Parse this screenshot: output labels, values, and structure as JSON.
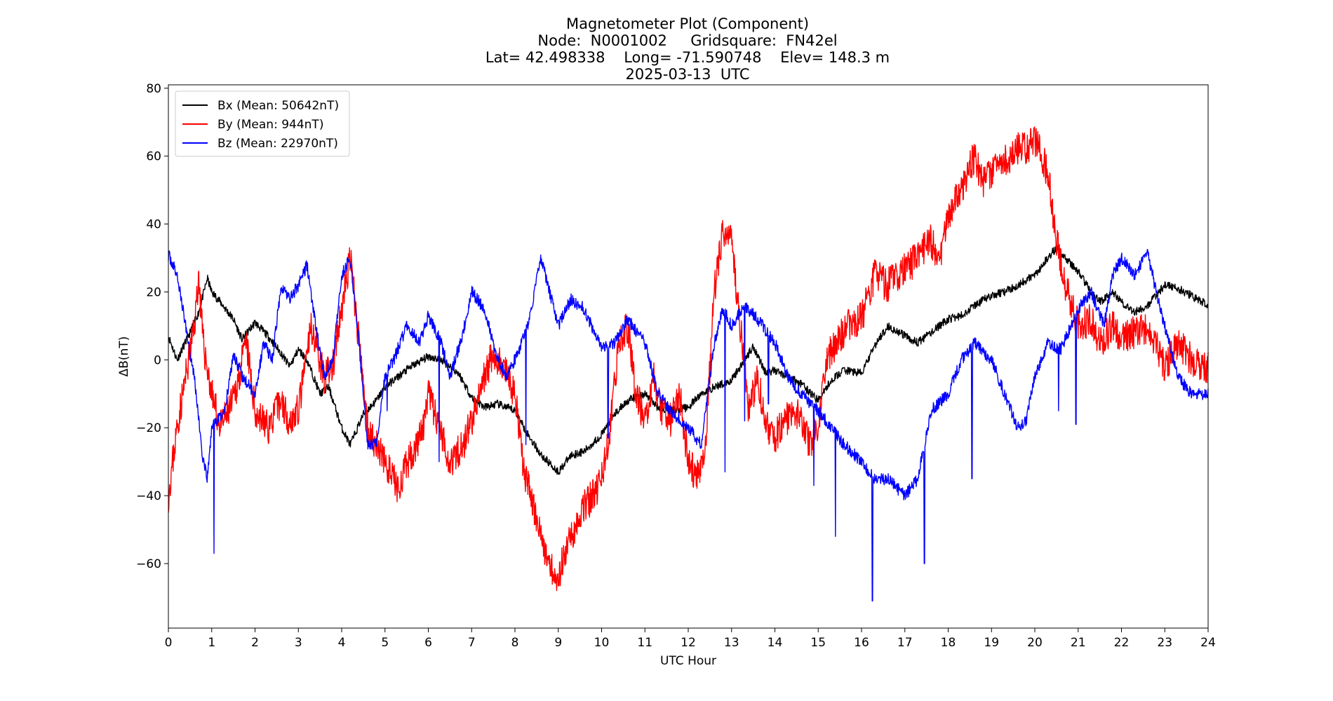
{
  "chart_data": {
    "type": "line",
    "title": "Magnetometer Plot (Component)",
    "subtitle_lines": [
      "Node:  N0001002     Gridsquare:  FN42el",
      "Lat= 42.498338    Long= -71.590748    Elev= 148.3 m",
      "2025-03-13  UTC"
    ],
    "xlabel": "UTC Hour",
    "ylabel": "ΔB(nT)",
    "xlim": [
      0,
      24
    ],
    "ylim": [
      -79,
      81
    ],
    "xticks": [
      0,
      1,
      2,
      3,
      4,
      5,
      6,
      7,
      8,
      9,
      10,
      11,
      12,
      13,
      14,
      15,
      16,
      17,
      18,
      19,
      20,
      21,
      22,
      23,
      24
    ],
    "yticks": [
      -60,
      -40,
      -20,
      0,
      20,
      40,
      60,
      80
    ],
    "ytick_labels": [
      "−60",
      "−40",
      "−20",
      "0",
      "20",
      "40",
      "60",
      "80"
    ],
    "legend_position": "upper-left",
    "series": [
      {
        "name": "Bx (Mean: 50642nT)",
        "color": "#000000",
        "noise": 1.2,
        "seed": 11,
        "points": [
          [
            0,
            7
          ],
          [
            0.2,
            0
          ],
          [
            0.5,
            8
          ],
          [
            0.7,
            14
          ],
          [
            0.9,
            24
          ],
          [
            1,
            20
          ],
          [
            1.2,
            17
          ],
          [
            1.5,
            12
          ],
          [
            1.7,
            6
          ],
          [
            2,
            11
          ],
          [
            2.3,
            7
          ],
          [
            2.6,
            2
          ],
          [
            2.8,
            -2
          ],
          [
            3,
            3
          ],
          [
            3.2,
            0
          ],
          [
            3.5,
            -10
          ],
          [
            3.7,
            -8
          ],
          [
            4,
            -20
          ],
          [
            4.2,
            -25
          ],
          [
            4.5,
            -16
          ],
          [
            4.8,
            -12
          ],
          [
            5,
            -8
          ],
          [
            5.3,
            -5
          ],
          [
            5.6,
            -2
          ],
          [
            6,
            1
          ],
          [
            6.3,
            0
          ],
          [
            6.7,
            -4
          ],
          [
            7,
            -11
          ],
          [
            7.3,
            -14
          ],
          [
            7.6,
            -13
          ],
          [
            8,
            -15
          ],
          [
            8.3,
            -22
          ],
          [
            8.6,
            -28
          ],
          [
            9,
            -33
          ],
          [
            9.3,
            -28
          ],
          [
            9.6,
            -27
          ],
          [
            10,
            -22
          ],
          [
            10.3,
            -16
          ],
          [
            10.6,
            -12
          ],
          [
            11,
            -10
          ],
          [
            11.3,
            -14
          ],
          [
            11.6,
            -15
          ],
          [
            12,
            -14
          ],
          [
            12.3,
            -10
          ],
          [
            12.6,
            -8
          ],
          [
            13,
            -6
          ],
          [
            13.3,
            0
          ],
          [
            13.5,
            4
          ],
          [
            13.8,
            -4
          ],
          [
            14,
            -3
          ],
          [
            14.3,
            -5
          ],
          [
            14.6,
            -7
          ],
          [
            15,
            -12
          ],
          [
            15.3,
            -6
          ],
          [
            15.6,
            -3
          ],
          [
            16,
            -4
          ],
          [
            16.3,
            4
          ],
          [
            16.6,
            10
          ],
          [
            17,
            7
          ],
          [
            17.3,
            5
          ],
          [
            17.6,
            8
          ],
          [
            18,
            12
          ],
          [
            18.3,
            13
          ],
          [
            18.6,
            16
          ],
          [
            19,
            19
          ],
          [
            19.3,
            20
          ],
          [
            19.6,
            22
          ],
          [
            20,
            25
          ],
          [
            20.3,
            30
          ],
          [
            20.5,
            33
          ],
          [
            20.7,
            30
          ],
          [
            21,
            26
          ],
          [
            21.3,
            20
          ],
          [
            21.5,
            17
          ],
          [
            21.8,
            20
          ],
          [
            22,
            17
          ],
          [
            22.3,
            14
          ],
          [
            22.6,
            16
          ],
          [
            23,
            22
          ],
          [
            23.3,
            21
          ],
          [
            23.6,
            19
          ],
          [
            24,
            16
          ]
        ]
      },
      {
        "name": "By (Mean: 944nT)",
        "color": "#ff0000",
        "noise": 5,
        "seed": 23,
        "points": [
          [
            0,
            -40
          ],
          [
            0.2,
            -20
          ],
          [
            0.4,
            -5
          ],
          [
            0.6,
            10
          ],
          [
            0.7,
            25
          ],
          [
            0.8,
            5
          ],
          [
            1,
            -10
          ],
          [
            1.2,
            -20
          ],
          [
            1.5,
            -12
          ],
          [
            1.8,
            5
          ],
          [
            2,
            -15
          ],
          [
            2.3,
            -20
          ],
          [
            2.6,
            -12
          ],
          [
            2.8,
            -18
          ],
          [
            3,
            -15
          ],
          [
            3.3,
            10
          ],
          [
            3.6,
            -5
          ],
          [
            3.8,
            -2
          ],
          [
            4,
            15
          ],
          [
            4.2,
            30
          ],
          [
            4.4,
            5
          ],
          [
            4.6,
            -20
          ],
          [
            4.8,
            -25
          ],
          [
            5,
            -30
          ],
          [
            5.3,
            -38
          ],
          [
            5.6,
            -28
          ],
          [
            5.9,
            -20
          ],
          [
            6,
            -10
          ],
          [
            6.2,
            -18
          ],
          [
            6.5,
            -30
          ],
          [
            6.8,
            -25
          ],
          [
            7,
            -18
          ],
          [
            7.3,
            -5
          ],
          [
            7.5,
            2
          ],
          [
            7.7,
            -2
          ],
          [
            8,
            -10
          ],
          [
            8.2,
            -32
          ],
          [
            8.4,
            -42
          ],
          [
            8.6,
            -52
          ],
          [
            8.8,
            -60
          ],
          [
            9,
            -64
          ],
          [
            9.2,
            -55
          ],
          [
            9.5,
            -45
          ],
          [
            9.8,
            -40
          ],
          [
            10,
            -35
          ],
          [
            10.2,
            -20
          ],
          [
            10.4,
            5
          ],
          [
            10.6,
            10
          ],
          [
            10.8,
            -10
          ],
          [
            11,
            -18
          ],
          [
            11.2,
            -5
          ],
          [
            11.4,
            -15
          ],
          [
            11.6,
            -18
          ],
          [
            11.8,
            -10
          ],
          [
            12,
            -30
          ],
          [
            12.2,
            -35
          ],
          [
            12.4,
            -25
          ],
          [
            12.6,
            20
          ],
          [
            12.8,
            38
          ],
          [
            13,
            35
          ],
          [
            13.2,
            10
          ],
          [
            13.4,
            -15
          ],
          [
            13.6,
            -5
          ],
          [
            13.8,
            -20
          ],
          [
            14,
            -23
          ],
          [
            14.2,
            -18
          ],
          [
            14.5,
            -15
          ],
          [
            14.8,
            -25
          ],
          [
            15,
            -20
          ],
          [
            15.2,
            0
          ],
          [
            15.4,
            5
          ],
          [
            15.7,
            10
          ],
          [
            16,
            12
          ],
          [
            16.3,
            25
          ],
          [
            16.6,
            22
          ],
          [
            17,
            27
          ],
          [
            17.3,
            30
          ],
          [
            17.6,
            35
          ],
          [
            17.8,
            30
          ],
          [
            18,
            43
          ],
          [
            18.3,
            50
          ],
          [
            18.6,
            60
          ],
          [
            18.8,
            52
          ],
          [
            19,
            55
          ],
          [
            19.3,
            58
          ],
          [
            19.6,
            62
          ],
          [
            19.8,
            62
          ],
          [
            20,
            65
          ],
          [
            20.3,
            55
          ],
          [
            20.5,
            35
          ],
          [
            20.7,
            22
          ],
          [
            21,
            10
          ],
          [
            21.3,
            12
          ],
          [
            21.5,
            5
          ],
          [
            21.8,
            10
          ],
          [
            22,
            6
          ],
          [
            22.3,
            8
          ],
          [
            22.6,
            10
          ],
          [
            22.8,
            5
          ],
          [
            23,
            -2
          ],
          [
            23.3,
            5
          ],
          [
            23.6,
            0
          ],
          [
            24,
            -2
          ]
        ]
      },
      {
        "name": "Bz (Mean: 22970nT)",
        "color": "#0000ff",
        "noise": 1.8,
        "seed": 37,
        "points": [
          [
            0,
            31
          ],
          [
            0.2,
            25
          ],
          [
            0.4,
            10
          ],
          [
            0.6,
            -5
          ],
          [
            0.8,
            -30
          ],
          [
            0.9,
            -35
          ],
          [
            1,
            -20
          ],
          [
            1.3,
            -15
          ],
          [
            1.5,
            2
          ],
          [
            1.7,
            -5
          ],
          [
            2,
            -10
          ],
          [
            2.2,
            5
          ],
          [
            2.4,
            0
          ],
          [
            2.6,
            22
          ],
          [
            2.8,
            18
          ],
          [
            3,
            22
          ],
          [
            3.2,
            28
          ],
          [
            3.4,
            10
          ],
          [
            3.6,
            -5
          ],
          [
            3.8,
            0
          ],
          [
            4,
            25
          ],
          [
            4.2,
            30
          ],
          [
            4.4,
            5
          ],
          [
            4.6,
            -25
          ],
          [
            4.8,
            -25
          ],
          [
            5,
            -5
          ],
          [
            5.2,
            0
          ],
          [
            5.5,
            10
          ],
          [
            5.8,
            5
          ],
          [
            6,
            13
          ],
          [
            6.3,
            5
          ],
          [
            6.5,
            -5
          ],
          [
            6.8,
            8
          ],
          [
            7,
            20
          ],
          [
            7.3,
            15
          ],
          [
            7.6,
            0
          ],
          [
            7.8,
            -5
          ],
          [
            8,
            0
          ],
          [
            8.3,
            10
          ],
          [
            8.6,
            30
          ],
          [
            8.8,
            20
          ],
          [
            9,
            10
          ],
          [
            9.3,
            18
          ],
          [
            9.6,
            15
          ],
          [
            10,
            3
          ],
          [
            10.3,
            5
          ],
          [
            10.6,
            12
          ],
          [
            11,
            5
          ],
          [
            11.3,
            -10
          ],
          [
            11.6,
            -15
          ],
          [
            12,
            -20
          ],
          [
            12.3,
            -25
          ],
          [
            12.6,
            5
          ],
          [
            12.8,
            15
          ],
          [
            13,
            10
          ],
          [
            13.3,
            16
          ],
          [
            13.6,
            12
          ],
          [
            14,
            5
          ],
          [
            14.3,
            -5
          ],
          [
            14.6,
            -10
          ],
          [
            15,
            -15
          ],
          [
            15.3,
            -20
          ],
          [
            15.6,
            -25
          ],
          [
            16,
            -30
          ],
          [
            16.3,
            -35
          ],
          [
            16.6,
            -35
          ],
          [
            17,
            -40
          ],
          [
            17.3,
            -35
          ],
          [
            17.6,
            -15
          ],
          [
            18,
            -10
          ],
          [
            18.3,
            0
          ],
          [
            18.6,
            5
          ],
          [
            19,
            0
          ],
          [
            19.3,
            -10
          ],
          [
            19.6,
            -20
          ],
          [
            19.8,
            -18
          ],
          [
            20,
            -5
          ],
          [
            20.3,
            5
          ],
          [
            20.6,
            3
          ],
          [
            21,
            15
          ],
          [
            21.3,
            20
          ],
          [
            21.6,
            10
          ],
          [
            21.8,
            25
          ],
          [
            22,
            30
          ],
          [
            22.3,
            25
          ],
          [
            22.6,
            32
          ],
          [
            22.8,
            20
          ],
          [
            23,
            10
          ],
          [
            23.3,
            -5
          ],
          [
            23.6,
            -10
          ],
          [
            24,
            -10
          ]
        ],
        "spikes": [
          [
            1.05,
            -57
          ],
          [
            5.05,
            -15
          ],
          [
            6.25,
            -30
          ],
          [
            8.25,
            -25
          ],
          [
            10.15,
            -23
          ],
          [
            12.85,
            -33
          ],
          [
            13.3,
            -18
          ],
          [
            13.85,
            -13
          ],
          [
            14.9,
            -37
          ],
          [
            15.4,
            -52
          ],
          [
            16.25,
            -71
          ],
          [
            17.45,
            -60
          ],
          [
            18.55,
            -35
          ],
          [
            20.55,
            -15
          ],
          [
            20.95,
            -19
          ]
        ]
      }
    ]
  }
}
